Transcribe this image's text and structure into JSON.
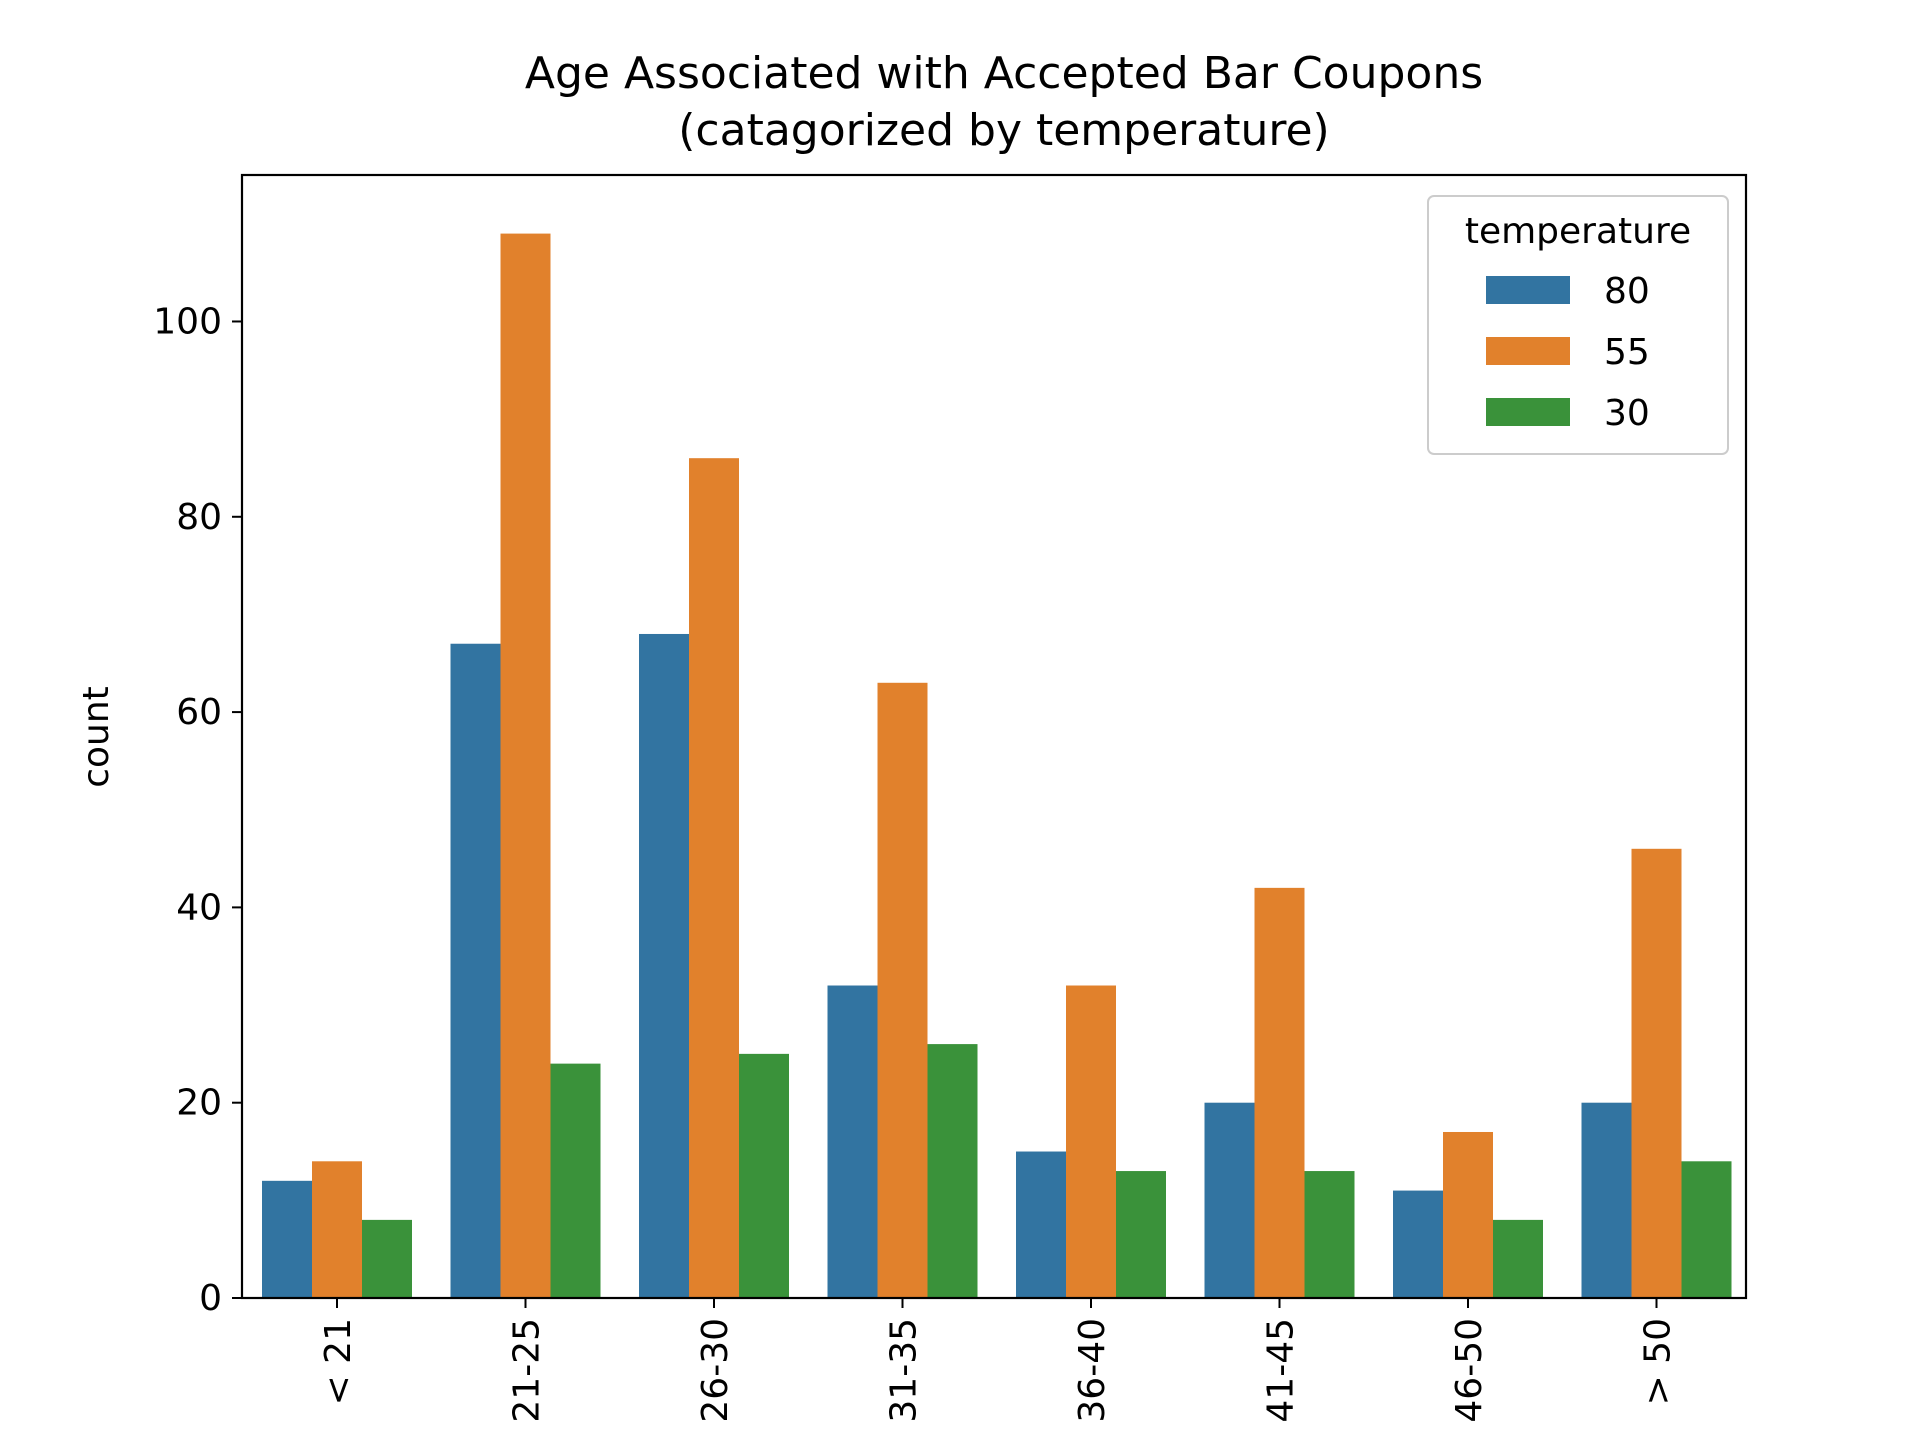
{
  "chart_data": {
    "type": "bar",
    "title": "Age Associated with Accepted Bar Coupons",
    "subtitle": "(catagorized by temperature)",
    "xlabel": "",
    "ylabel": "count",
    "categories": [
      "< 21",
      "21-25",
      "26-30",
      "31-35",
      "36-40",
      "41-45",
      "46-50",
      "> 50"
    ],
    "series": [
      {
        "name": "80",
        "color": "#3274a1",
        "values": [
          12,
          67,
          68,
          32,
          15,
          20,
          11,
          20
        ]
      },
      {
        "name": "55",
        "color": "#e1812c",
        "values": [
          14,
          109,
          86,
          63,
          32,
          42,
          17,
          46
        ]
      },
      {
        "name": "30",
        "color": "#3a923a",
        "values": [
          8,
          24,
          25,
          26,
          13,
          13,
          8,
          14
        ]
      }
    ],
    "ylim": [
      0,
      115
    ],
    "yticks": [
      0,
      20,
      40,
      60,
      80,
      100
    ],
    "grid": false,
    "legend": {
      "title": "temperature",
      "position": "top-right"
    }
  }
}
